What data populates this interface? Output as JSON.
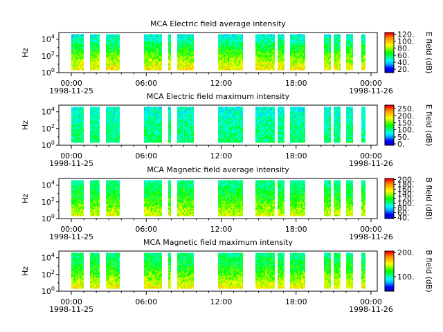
{
  "figure": {
    "colors": {
      "background": "#ffffff",
      "axes": "#000000",
      "colormap": [
        "#0000c8",
        "#0000ff",
        "#00a0ff",
        "#00ffff",
        "#00ff80",
        "#00ff00",
        "#80ff00",
        "#ffff00",
        "#ffc000",
        "#ff7f00",
        "#ff0000"
      ]
    }
  },
  "chart_data": [
    {
      "type": "heatmap",
      "title": "MCA  Electric field average intensity",
      "ylabel": "Hz",
      "y_scale": "log",
      "y_ticks": [
        {
          "base": "10",
          "exp": "0"
        },
        {
          "base": "10",
          "exp": "2"
        },
        {
          "base": "10",
          "exp": "4"
        }
      ],
      "x_ticks": [
        {
          "line1": "00:00",
          "line2": "1998-11-25"
        },
        {
          "line1": "06:00",
          "line2": ""
        },
        {
          "line1": "12:00",
          "line2": ""
        },
        {
          "line1": "18:00",
          "line2": ""
        },
        {
          "line1": "00:00",
          "line2": "1998-11-26"
        }
      ],
      "colorbar": {
        "label": "E field (dB)",
        "range": [
          10,
          125
        ],
        "ticks": [
          "20.",
          "40.",
          "60.",
          "80.",
          "100.",
          "120."
        ]
      },
      "data_segments_utc": [
        [
          "00:00",
          "01:00"
        ],
        [
          "01:30",
          "02:15"
        ],
        [
          "02:45",
          "03:50"
        ],
        [
          "05:50",
          "07:15"
        ],
        [
          "07:45",
          "08:00"
        ],
        [
          "08:30",
          "09:45"
        ],
        [
          "11:45",
          "13:45"
        ],
        [
          "14:45",
          "16:15"
        ],
        [
          "16:30",
          "17:00"
        ],
        [
          "17:30",
          "18:45"
        ],
        [
          "20:15",
          "20:45"
        ],
        [
          "21:00",
          "21:30"
        ],
        [
          "22:00",
          "22:30"
        ],
        [
          "23:15",
          "23:30"
        ]
      ],
      "intensity_db": {
        "low_freq": 95,
        "mid_freq": 70,
        "high_freq": 45
      }
    },
    {
      "type": "heatmap",
      "title": "MCA  Electric field maximum intensity",
      "ylabel": "Hz",
      "y_scale": "log",
      "y_ticks": [
        {
          "base": "10",
          "exp": "0"
        },
        {
          "base": "10",
          "exp": "2"
        },
        {
          "base": "10",
          "exp": "4"
        }
      ],
      "x_ticks": [
        {
          "line1": "00:00",
          "line2": "1998-11-25"
        },
        {
          "line1": "06:00",
          "line2": ""
        },
        {
          "line1": "12:00",
          "line2": ""
        },
        {
          "line1": "18:00",
          "line2": ""
        },
        {
          "line1": "00:00",
          "line2": "1998-11-26"
        }
      ],
      "colorbar": {
        "label": "E field (dB)",
        "range": [
          -10,
          275
        ],
        "ticks": [
          "0.",
          "50.",
          "100.",
          "150.",
          "200.",
          "250."
        ]
      },
      "data_segments_utc": [
        [
          "00:00",
          "01:00"
        ],
        [
          "01:30",
          "02:15"
        ],
        [
          "02:45",
          "03:50"
        ],
        [
          "05:50",
          "07:15"
        ],
        [
          "07:45",
          "08:00"
        ],
        [
          "08:30",
          "09:45"
        ],
        [
          "11:45",
          "13:45"
        ],
        [
          "14:45",
          "16:15"
        ],
        [
          "16:30",
          "17:00"
        ],
        [
          "17:30",
          "18:45"
        ],
        [
          "20:15",
          "20:45"
        ],
        [
          "21:00",
          "21:30"
        ],
        [
          "22:00",
          "22:30"
        ],
        [
          "23:15",
          "23:30"
        ]
      ],
      "intensity_db": {
        "low_freq": 110,
        "mid_freq": 100,
        "high_freq": 80
      }
    },
    {
      "type": "heatmap",
      "title": "MCA  Magnetic field average intensity",
      "ylabel": "Hz",
      "y_scale": "log",
      "y_ticks": [
        {
          "base": "10",
          "exp": "0"
        },
        {
          "base": "10",
          "exp": "2"
        },
        {
          "base": "10",
          "exp": "4"
        }
      ],
      "x_ticks": [
        {
          "line1": "00:00",
          "line2": "1998-11-25"
        },
        {
          "line1": "06:00",
          "line2": ""
        },
        {
          "line1": "12:00",
          "line2": ""
        },
        {
          "line1": "18:00",
          "line2": ""
        },
        {
          "line1": "00:00",
          "line2": "1998-11-26"
        }
      ],
      "colorbar": {
        "label": "B field (dB)",
        "range": [
          35,
          205
        ],
        "ticks": [
          "40.",
          "60.",
          "80.",
          "100.",
          "120.",
          "140.",
          "160.",
          "180.",
          "200."
        ]
      },
      "data_segments_utc": [
        [
          "00:00",
          "01:00"
        ],
        [
          "01:30",
          "02:15"
        ],
        [
          "02:45",
          "03:50"
        ],
        [
          "05:50",
          "07:15"
        ],
        [
          "07:45",
          "08:00"
        ],
        [
          "08:30",
          "09:45"
        ],
        [
          "11:45",
          "13:45"
        ],
        [
          "14:45",
          "16:15"
        ],
        [
          "16:30",
          "17:00"
        ],
        [
          "17:30",
          "18:45"
        ],
        [
          "20:15",
          "20:45"
        ],
        [
          "21:00",
          "21:30"
        ],
        [
          "22:00",
          "22:30"
        ],
        [
          "23:15",
          "23:30"
        ]
      ],
      "intensity_db": {
        "low_freq": 150,
        "mid_freq": 120,
        "high_freq": 100
      }
    },
    {
      "type": "heatmap",
      "title": "MCA  Magnetic field maximum intensity",
      "ylabel": "Hz",
      "y_scale": "log",
      "y_ticks": [
        {
          "base": "10",
          "exp": "0"
        },
        {
          "base": "10",
          "exp": "2"
        },
        {
          "base": "10",
          "exp": "4"
        }
      ],
      "x_ticks": [
        {
          "line1": "00:00",
          "line2": "1998-11-25"
        },
        {
          "line1": "06:00",
          "line2": ""
        },
        {
          "line1": "12:00",
          "line2": ""
        },
        {
          "line1": "18:00",
          "line2": ""
        },
        {
          "line1": "00:00",
          "line2": "1998-11-26"
        }
      ],
      "colorbar": {
        "label": "B field (dB)",
        "range": [
          40,
          205
        ],
        "ticks": [
          "100.",
          "200."
        ]
      },
      "data_segments_utc": [
        [
          "00:00",
          "01:00"
        ],
        [
          "01:30",
          "02:15"
        ],
        [
          "02:45",
          "03:50"
        ],
        [
          "05:50",
          "07:15"
        ],
        [
          "07:45",
          "08:00"
        ],
        [
          "08:30",
          "09:45"
        ],
        [
          "11:45",
          "13:45"
        ],
        [
          "14:45",
          "16:15"
        ],
        [
          "16:30",
          "17:00"
        ],
        [
          "17:30",
          "18:45"
        ],
        [
          "20:15",
          "20:45"
        ],
        [
          "21:00",
          "21:30"
        ],
        [
          "22:00",
          "22:30"
        ],
        [
          "23:15",
          "23:30"
        ]
      ],
      "intensity_db": {
        "low_freq": 160,
        "mid_freq": 125,
        "high_freq": 105
      }
    }
  ]
}
